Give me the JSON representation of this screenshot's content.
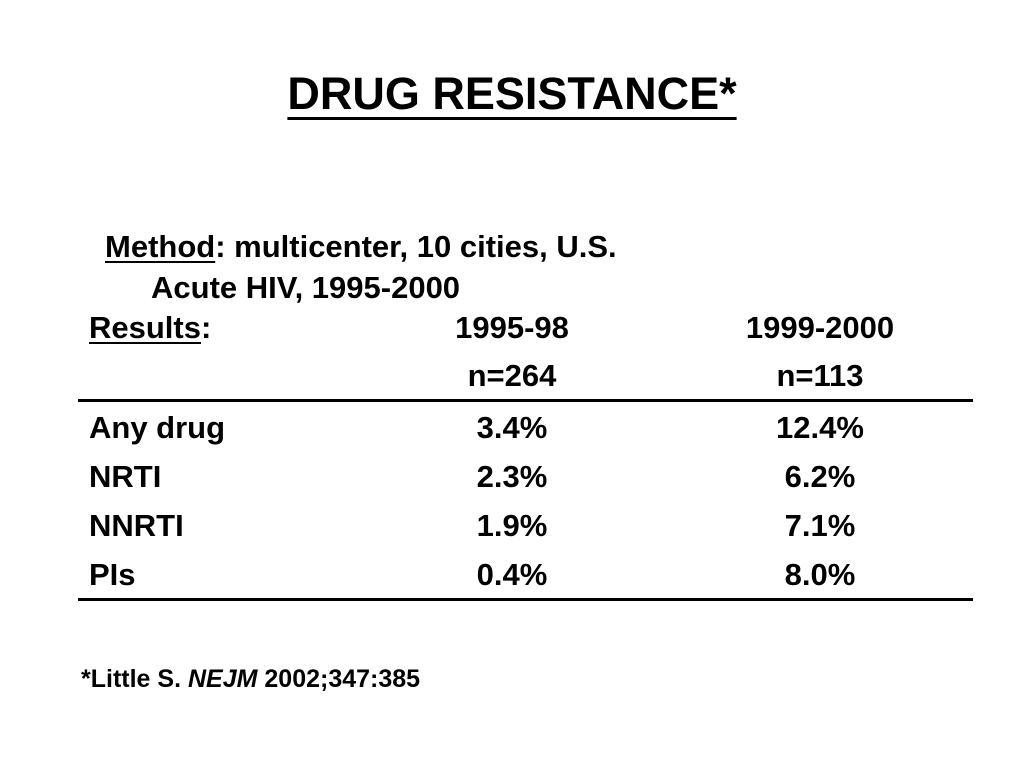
{
  "title": "DRUG RESISTANCE*",
  "method": {
    "label": "Method",
    "text": ": multicenter, 10 cities, U.S.",
    "line2": "Acute HIV, 1995-2000"
  },
  "results": {
    "label": "Results",
    "colon": ":",
    "columns": [
      {
        "period": "1995-98",
        "n": "n=264"
      },
      {
        "period": "1999-2000",
        "n": "n=113"
      }
    ],
    "rows": [
      {
        "name": "Any drug",
        "values": [
          "3.4%",
          "12.4%"
        ]
      },
      {
        "name": "NRTI",
        "values": [
          "2.3%",
          "6.2%"
        ]
      },
      {
        "name": "NNRTI",
        "values": [
          "1.9%",
          "7.1%"
        ]
      },
      {
        "name": "PIs",
        "values": [
          "0.4%",
          "8.0%"
        ]
      }
    ]
  },
  "citation": {
    "prefix": "*Little S. ",
    "journal": "NEJM",
    "suffix": " 2002;347:385"
  }
}
